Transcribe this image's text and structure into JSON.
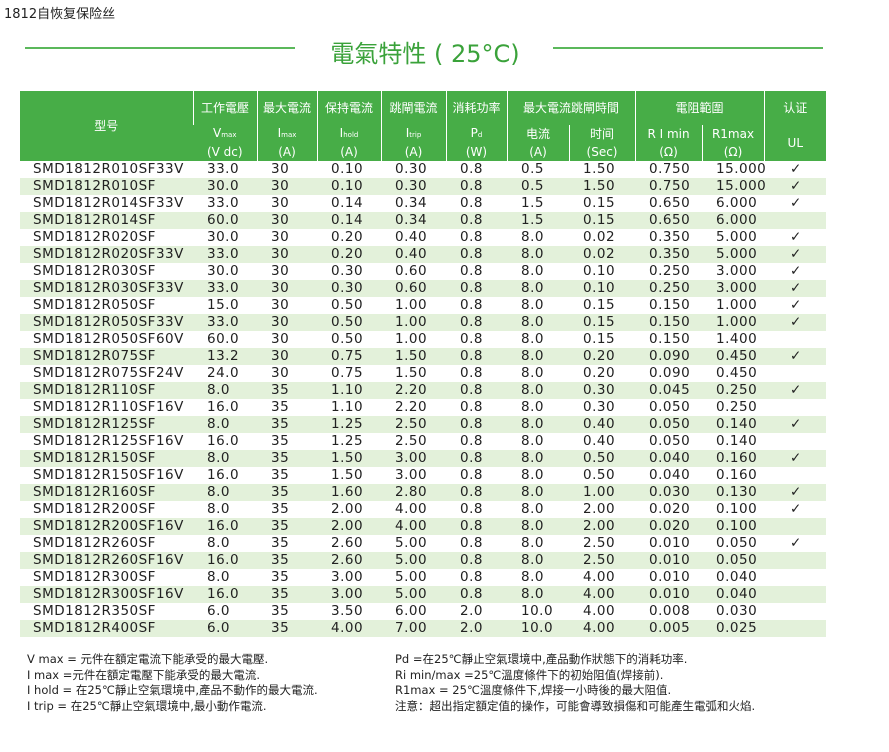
{
  "page_title": "1812自恢复保险丝",
  "section_title": "電氣特性 ( 25°C)",
  "table": {
    "header": {
      "model": "型号",
      "row1": [
        "工作電壓",
        "最大電流",
        "保持電流",
        "跳閘電流",
        "消耗功率",
        "最大電流跳閘時間",
        "電阻範圍",
        "认证"
      ],
      "row2": [
        {
          "symbol": "V",
          "sub": "max"
        },
        {
          "symbol": "I",
          "sub": "max"
        },
        {
          "symbol": "I",
          "sub": "hold"
        },
        {
          "symbol": "I",
          "sub": "trip"
        },
        {
          "symbol": "P",
          "sub": "d"
        },
        "电流",
        "时间",
        "R I min",
        "R1max",
        "UL"
      ],
      "row3": [
        "(V dc)",
        "(A)",
        "(A)",
        "(A)",
        "(W)",
        "(A)",
        "(Sec)",
        "(Ω)",
        "(Ω)"
      ]
    },
    "rows": [
      [
        "SMD1812R010SF33V",
        "33.0",
        "30",
        "0.10",
        "0.30",
        "0.8",
        "0.5",
        "1.50",
        "0.750",
        "15.000",
        "✓"
      ],
      [
        "SMD1812R010SF",
        "30.0",
        "30",
        "0.10",
        "0.30",
        "0.8",
        "0.5",
        "1.50",
        "0.750",
        "15.000",
        "✓"
      ],
      [
        "SMD1812R014SF33V",
        "33.0",
        "30",
        "0.14",
        "0.34",
        "0.8",
        "1.5",
        "0.15",
        "0.650",
        "6.000",
        "✓"
      ],
      [
        "SMD1812R014SF",
        "60.0",
        "30",
        "0.14",
        "0.34",
        "0.8",
        "1.5",
        "0.15",
        "0.650",
        "6.000"
      ],
      [
        "SMD1812R020SF",
        "30.0",
        "30",
        "0.20",
        "0.40",
        "0.8",
        "8.0",
        "0.02",
        "0.350",
        "5.000",
        "✓"
      ],
      [
        "SMD1812R020SF33V",
        "33.0",
        "30",
        "0.20",
        "0.40",
        "0.8",
        "8.0",
        "0.02",
        "0.350",
        "5.000",
        "✓"
      ],
      [
        "SMD1812R030SF",
        "30.0",
        "30",
        "0.30",
        "0.60",
        "0.8",
        "8.0",
        "0.10",
        "0.250",
        "3.000",
        "✓"
      ],
      [
        "SMD1812R030SF33V",
        "33.0",
        "30",
        "0.30",
        "0.60",
        "0.8",
        "8.0",
        "0.10",
        "0.250",
        "3.000",
        "✓"
      ],
      [
        "SMD1812R050SF",
        "15.0",
        "30",
        "0.50",
        "1.00",
        "0.8",
        "8.0",
        "0.15",
        "0.150",
        "1.000",
        "✓"
      ],
      [
        "SMD1812R050SF33V",
        "33.0",
        "30",
        "0.50",
        "1.00",
        "0.8",
        "8.0",
        "0.15",
        "0.150",
        "1.000",
        "✓"
      ],
      [
        "SMD1812R050SF60V",
        "60.0",
        "30",
        "0.50",
        "1.00",
        "0.8",
        "8.0",
        "0.15",
        "0.150",
        "1.400"
      ],
      [
        "SMD1812R075SF",
        "13.2",
        "30",
        "0.75",
        "1.50",
        "0.8",
        "8.0",
        "0.20",
        "0.090",
        "0.450",
        "✓"
      ],
      [
        "SMD1812R075SF24V",
        "24.0",
        "30",
        "0.75",
        "1.50",
        "0.8",
        "8.0",
        "0.20",
        "0.090",
        "0.450"
      ],
      [
        "SMD1812R110SF",
        "8.0",
        "35",
        "1.10",
        "2.20",
        "0.8",
        "8.0",
        "0.30",
        "0.045",
        "0.250",
        "✓"
      ],
      [
        "SMD1812R110SF16V",
        "16.0",
        "35",
        "1.10",
        "2.20",
        "0.8",
        "8.0",
        "0.30",
        "0.050",
        "0.250"
      ],
      [
        "SMD1812R125SF",
        "8.0",
        "35",
        "1.25",
        "2.50",
        "0.8",
        "8.0",
        "0.40",
        "0.050",
        "0.140",
        "✓"
      ],
      [
        "SMD1812R125SF16V",
        "16.0",
        "35",
        "1.25",
        "2.50",
        "0.8",
        "8.0",
        "0.40",
        "0.050",
        "0.140"
      ],
      [
        "SMD1812R150SF",
        "8.0",
        "35",
        "1.50",
        "3.00",
        "0.8",
        "8.0",
        "0.50",
        "0.040",
        "0.160",
        "✓"
      ],
      [
        "SMD1812R150SF16V",
        "16.0",
        "35",
        "1.50",
        "3.00",
        "0.8",
        "8.0",
        "0.50",
        "0.040",
        "0.160"
      ],
      [
        "SMD1812R160SF",
        "8.0",
        "35",
        "1.60",
        "2.80",
        "0.8",
        "8.0",
        "1.00",
        "0.030",
        "0.130",
        "✓"
      ],
      [
        "SMD1812R200SF",
        "8.0",
        "35",
        "2.00",
        "4.00",
        "0.8",
        "8.0",
        "2.00",
        "0.020",
        "0.100",
        "✓"
      ],
      [
        "SMD1812R200SF16V",
        "16.0",
        "35",
        "2.00",
        "4.00",
        "0.8",
        "8.0",
        "2.00",
        "0.020",
        "0.100"
      ],
      [
        "SMD1812R260SF",
        "8.0",
        "35",
        "2.60",
        "5.00",
        "0.8",
        "8.0",
        "2.50",
        "0.010",
        "0.050",
        "✓"
      ],
      [
        "SMD1812R260SF16V",
        "16.0",
        "35",
        "2.60",
        "5.00",
        "0.8",
        "8.0",
        "2.50",
        "0.010",
        "0.050"
      ],
      [
        "SMD1812R300SF",
        "8.0",
        "35",
        "3.00",
        "5.00",
        "0.8",
        "8.0",
        "4.00",
        "0.010",
        "0.040"
      ],
      [
        "SMD1812R300SF16V",
        "16.0",
        "35",
        "3.00",
        "5.00",
        "0.8",
        "8.0",
        "4.00",
        "0.010",
        "0.040"
      ],
      [
        "SMD1812R350SF",
        "6.0",
        "35",
        "3.50",
        "6.00",
        "2.0",
        "10.0",
        "4.00",
        "0.008",
        "0.030"
      ],
      [
        "SMD1812R400SF",
        "6.0",
        "35",
        "4.00",
        "7.00",
        "2.0",
        "10.0",
        "4.00",
        "0.005",
        "0.025"
      ]
    ]
  },
  "notes": {
    "left": [
      "V max = 元件在額定電流下能承受的最大電壓.",
      "I max =元件在額定電壓下能承受的最大電流.",
      "I hold = 在25℃靜止空氣環境中,產品不動作的最大電流.",
      "I trip = 在25℃靜止空氣環境中,最小動作電流."
    ],
    "right": [
      "Pd =在25℃靜止空氣環境中,產品動作狀態下的消耗功率.",
      "Ri min/max  =25℃溫度條件下的初始阻值(焊接前).",
      "R1max  = 25℃溫度條件下,焊接一小時後的最大阻值.",
      "注意：超出指定額定值的操作，可能會導致損傷和可能產生電弧和火焰."
    ]
  }
}
